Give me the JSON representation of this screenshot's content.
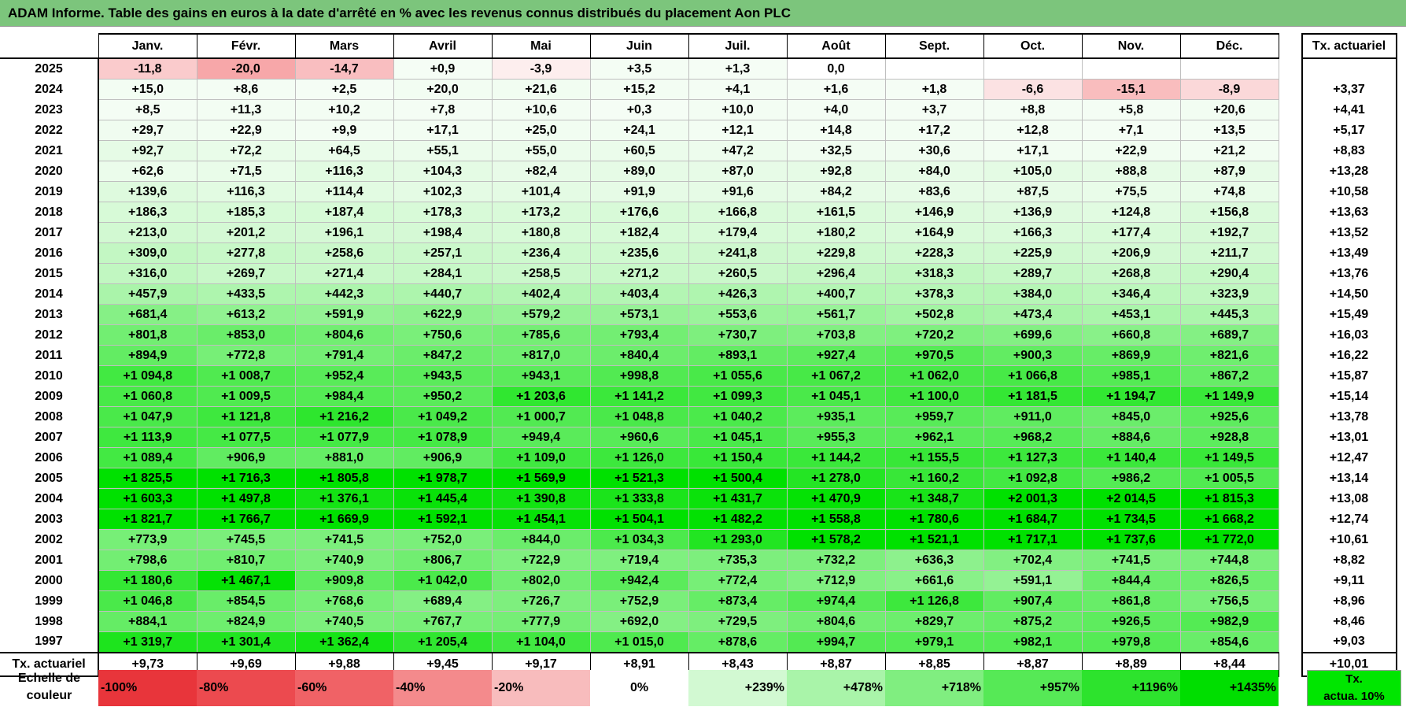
{
  "title": "ADAM Informe. Table des gains en euros à la date d'arrêté en % avec les revenus connus distribués du placement Aon PLC",
  "months": [
    "Janv.",
    "Févr.",
    "Mars",
    "Avril",
    "Mai",
    "Juin",
    "Juil.",
    "Août",
    "Sept.",
    "Oct.",
    "Nov.",
    "Déc."
  ],
  "tx_header": "Tx. actuariel",
  "tx_row_label": "Tx. actuariel",
  "rows": [
    {
      "year": "2025",
      "values": [
        "-11,8",
        "-20,0",
        "-14,7",
        "+0,9",
        "-3,9",
        "+3,5",
        "+1,3",
        "0,0",
        "",
        "",
        "",
        ""
      ],
      "tx": ""
    },
    {
      "year": "2024",
      "values": [
        "+15,0",
        "+8,6",
        "+2,5",
        "+20,0",
        "+21,6",
        "+15,2",
        "+4,1",
        "+1,6",
        "+1,8",
        "-6,6",
        "-15,1",
        "-8,9"
      ],
      "tx": "+3,37"
    },
    {
      "year": "2023",
      "values": [
        "+8,5",
        "+11,3",
        "+10,2",
        "+7,8",
        "+10,6",
        "+0,3",
        "+10,0",
        "+4,0",
        "+3,7",
        "+8,8",
        "+5,8",
        "+20,6"
      ],
      "tx": "+4,41"
    },
    {
      "year": "2022",
      "values": [
        "+29,7",
        "+22,9",
        "+9,9",
        "+17,1",
        "+25,0",
        "+24,1",
        "+12,1",
        "+14,8",
        "+17,2",
        "+12,8",
        "+7,1",
        "+13,5"
      ],
      "tx": "+5,17"
    },
    {
      "year": "2021",
      "values": [
        "+92,7",
        "+72,2",
        "+64,5",
        "+55,1",
        "+55,0",
        "+60,5",
        "+47,2",
        "+32,5",
        "+30,6",
        "+17,1",
        "+22,9",
        "+21,2"
      ],
      "tx": "+8,83"
    },
    {
      "year": "2020",
      "values": [
        "+62,6",
        "+71,5",
        "+116,3",
        "+104,3",
        "+82,4",
        "+89,0",
        "+87,0",
        "+92,8",
        "+84,0",
        "+105,0",
        "+88,8",
        "+87,9"
      ],
      "tx": "+13,28"
    },
    {
      "year": "2019",
      "values": [
        "+139,6",
        "+116,3",
        "+114,4",
        "+102,3",
        "+101,4",
        "+91,9",
        "+91,6",
        "+84,2",
        "+83,6",
        "+87,5",
        "+75,5",
        "+74,8"
      ],
      "tx": "+10,58"
    },
    {
      "year": "2018",
      "values": [
        "+186,3",
        "+185,3",
        "+187,4",
        "+178,3",
        "+173,2",
        "+176,6",
        "+166,8",
        "+161,5",
        "+146,9",
        "+136,9",
        "+124,8",
        "+156,8"
      ],
      "tx": "+13,63"
    },
    {
      "year": "2017",
      "values": [
        "+213,0",
        "+201,2",
        "+196,1",
        "+198,4",
        "+180,8",
        "+182,4",
        "+179,4",
        "+180,2",
        "+164,9",
        "+166,3",
        "+177,4",
        "+192,7"
      ],
      "tx": "+13,52"
    },
    {
      "year": "2016",
      "values": [
        "+309,0",
        "+277,8",
        "+258,6",
        "+257,1",
        "+236,4",
        "+235,6",
        "+241,8",
        "+229,8",
        "+228,3",
        "+225,9",
        "+206,9",
        "+211,7"
      ],
      "tx": "+13,49"
    },
    {
      "year": "2015",
      "values": [
        "+316,0",
        "+269,7",
        "+271,4",
        "+284,1",
        "+258,5",
        "+271,2",
        "+260,5",
        "+296,4",
        "+318,3",
        "+289,7",
        "+268,8",
        "+290,4"
      ],
      "tx": "+13,76"
    },
    {
      "year": "2014",
      "values": [
        "+457,9",
        "+433,5",
        "+442,3",
        "+440,7",
        "+402,4",
        "+403,4",
        "+426,3",
        "+400,7",
        "+378,3",
        "+384,0",
        "+346,4",
        "+323,9"
      ],
      "tx": "+14,50"
    },
    {
      "year": "2013",
      "values": [
        "+681,4",
        "+613,2",
        "+591,9",
        "+622,9",
        "+579,2",
        "+573,1",
        "+553,6",
        "+561,7",
        "+502,8",
        "+473,4",
        "+453,1",
        "+445,3"
      ],
      "tx": "+15,49"
    },
    {
      "year": "2012",
      "values": [
        "+801,8",
        "+853,0",
        "+804,6",
        "+750,6",
        "+785,6",
        "+793,4",
        "+730,7",
        "+703,8",
        "+720,2",
        "+699,6",
        "+660,8",
        "+689,7"
      ],
      "tx": "+16,03"
    },
    {
      "year": "2011",
      "values": [
        "+894,9",
        "+772,8",
        "+791,4",
        "+847,2",
        "+817,0",
        "+840,4",
        "+893,1",
        "+927,4",
        "+970,5",
        "+900,3",
        "+869,9",
        "+821,6"
      ],
      "tx": "+16,22"
    },
    {
      "year": "2010",
      "values": [
        "+1 094,8",
        "+1 008,7",
        "+952,4",
        "+943,5",
        "+943,1",
        "+998,8",
        "+1 055,6",
        "+1 067,2",
        "+1 062,0",
        "+1 066,8",
        "+985,1",
        "+867,2"
      ],
      "tx": "+15,87"
    },
    {
      "year": "2009",
      "values": [
        "+1 060,8",
        "+1 009,5",
        "+984,4",
        "+950,2",
        "+1 203,6",
        "+1 141,2",
        "+1 099,3",
        "+1 045,1",
        "+1 100,0",
        "+1 181,5",
        "+1 194,7",
        "+1 149,9"
      ],
      "tx": "+15,14"
    },
    {
      "year": "2008",
      "values": [
        "+1 047,9",
        "+1 121,8",
        "+1 216,2",
        "+1 049,2",
        "+1 000,7",
        "+1 048,8",
        "+1 040,2",
        "+935,1",
        "+959,7",
        "+911,0",
        "+845,0",
        "+925,6"
      ],
      "tx": "+13,78"
    },
    {
      "year": "2007",
      "values": [
        "+1 113,9",
        "+1 077,5",
        "+1 077,9",
        "+1 078,9",
        "+949,4",
        "+960,6",
        "+1 045,1",
        "+955,3",
        "+962,1",
        "+968,2",
        "+884,6",
        "+928,8"
      ],
      "tx": "+13,01"
    },
    {
      "year": "2006",
      "values": [
        "+1 089,4",
        "+906,9",
        "+881,0",
        "+906,9",
        "+1 109,0",
        "+1 126,0",
        "+1 150,4",
        "+1 144,2",
        "+1 155,5",
        "+1 127,3",
        "+1 140,4",
        "+1 149,5"
      ],
      "tx": "+12,47"
    },
    {
      "year": "2005",
      "values": [
        "+1 825,5",
        "+1 716,3",
        "+1 805,8",
        "+1 978,7",
        "+1 569,9",
        "+1 521,3",
        "+1 500,4",
        "+1 278,0",
        "+1 160,2",
        "+1 092,8",
        "+986,2",
        "+1 005,5"
      ],
      "tx": "+13,14"
    },
    {
      "year": "2004",
      "values": [
        "+1 603,3",
        "+1 497,8",
        "+1 376,1",
        "+1 445,4",
        "+1 390,8",
        "+1 333,8",
        "+1 431,7",
        "+1 470,9",
        "+1 348,7",
        "+2 001,3",
        "+2 014,5",
        "+1 815,3"
      ],
      "tx": "+13,08"
    },
    {
      "year": "2003",
      "values": [
        "+1 821,7",
        "+1 766,7",
        "+1 669,9",
        "+1 592,1",
        "+1 454,1",
        "+1 504,1",
        "+1 482,2",
        "+1 558,8",
        "+1 780,6",
        "+1 684,7",
        "+1 734,5",
        "+1 668,2"
      ],
      "tx": "+12,74"
    },
    {
      "year": "2002",
      "values": [
        "+773,9",
        "+745,5",
        "+741,5",
        "+752,0",
        "+844,0",
        "+1 034,3",
        "+1 293,0",
        "+1 578,2",
        "+1 521,1",
        "+1 717,1",
        "+1 737,6",
        "+1 772,0"
      ],
      "tx": "+10,61"
    },
    {
      "year": "2001",
      "values": [
        "+798,6",
        "+810,7",
        "+740,9",
        "+806,7",
        "+722,9",
        "+719,4",
        "+735,3",
        "+732,2",
        "+636,3",
        "+702,4",
        "+741,5",
        "+744,8"
      ],
      "tx": "+8,82"
    },
    {
      "year": "2000",
      "values": [
        "+1 180,6",
        "+1 467,1",
        "+909,8",
        "+1 042,0",
        "+802,0",
        "+942,4",
        "+772,4",
        "+712,9",
        "+661,6",
        "+591,1",
        "+844,4",
        "+826,5"
      ],
      "tx": "+9,11"
    },
    {
      "year": "1999",
      "values": [
        "+1 046,8",
        "+854,5",
        "+768,6",
        "+689,4",
        "+726,7",
        "+752,9",
        "+873,4",
        "+974,4",
        "+1 126,8",
        "+907,4",
        "+861,8",
        "+756,5"
      ],
      "tx": "+8,96"
    },
    {
      "year": "1998",
      "values": [
        "+884,1",
        "+824,9",
        "+740,5",
        "+767,7",
        "+777,9",
        "+692,0",
        "+729,5",
        "+804,6",
        "+829,7",
        "+875,2",
        "+926,5",
        "+982,9"
      ],
      "tx": "+8,46"
    },
    {
      "year": "1997",
      "values": [
        "+1 319,7",
        "+1 301,4",
        "+1 362,4",
        "+1 205,4",
        "+1 104,0",
        "+1 015,0",
        "+878,6",
        "+994,7",
        "+979,1",
        "+982,1",
        "+979,8",
        "+854,6"
      ],
      "tx": "+9,03"
    }
  ],
  "tx_row": [
    "+9,73",
    "+9,69",
    "+9,88",
    "+9,45",
    "+9,17",
    "+8,91",
    "+8,43",
    "+8,87",
    "+8,85",
    "+8,87",
    "+8,89",
    "+8,44"
  ],
  "tx_total": "+10,01",
  "scale": {
    "label_line1": "Echelle de",
    "label_line2": "couleur",
    "steps": [
      {
        "label": "-100%",
        "color": "#e8353b",
        "kind": "neg"
      },
      {
        "label": "-80%",
        "color": "#ec4a4f",
        "kind": "neg"
      },
      {
        "label": "-60%",
        "color": "#f06266",
        "kind": "neg"
      },
      {
        "label": "-40%",
        "color": "#f48a8c",
        "kind": "neg"
      },
      {
        "label": "-20%",
        "color": "#f8bcbd",
        "kind": "neg"
      },
      {
        "label": "0%",
        "color": "#ffffff",
        "kind": "zero"
      },
      {
        "label": "+239%",
        "color": "#d2f9d2",
        "kind": "pos"
      },
      {
        "label": "+478%",
        "color": "#a9f4a9",
        "kind": "pos"
      },
      {
        "label": "+718%",
        "color": "#80ee80",
        "kind": "pos"
      },
      {
        "label": "+957%",
        "color": "#56e956",
        "kind": "pos"
      },
      {
        "label": "+1196%",
        "color": "#2de32d",
        "kind": "pos"
      },
      {
        "label": "+1435%",
        "color": "#00de00",
        "kind": "pos"
      }
    ],
    "tx_line1": "Tx.",
    "tx_line2": "actua. 10%"
  }
}
